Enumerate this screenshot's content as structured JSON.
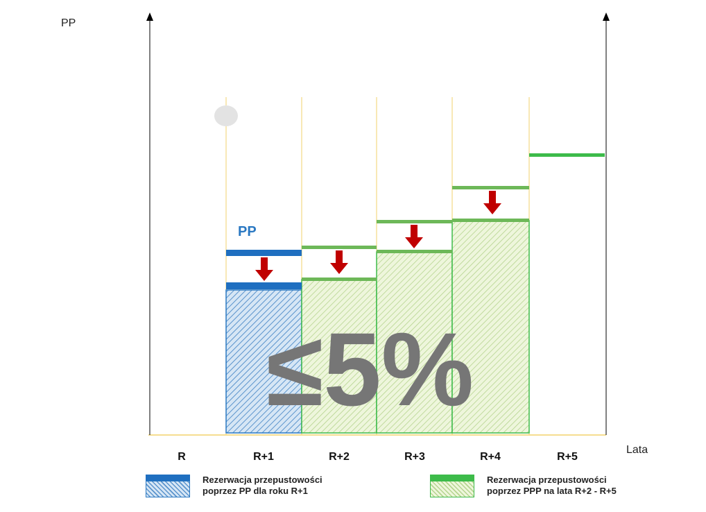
{
  "axes": {
    "left_label": "PP",
    "x_label": "Lata"
  },
  "categories": [
    "R",
    "R+1",
    "R+2",
    "R+3",
    "R+4",
    "R+5"
  ],
  "pp_label": "PP",
  "big_label": "≤5%",
  "legend": {
    "pp": {
      "line1": "Rezerwacja przepustowości",
      "line2": "poprzez PP dla roku R+1"
    },
    "ppp": {
      "line1": "Rezerwacja przepustowości",
      "line2": "poprzez PPP na lata R+2 - R+5"
    }
  },
  "colors": {
    "pp_blue": "#1f6fc0",
    "ppp_green": "#3dbb4a",
    "arrow_red": "#c00000",
    "divider_yellow": "#f2d26b",
    "big_text_gray": "#767676"
  }
}
